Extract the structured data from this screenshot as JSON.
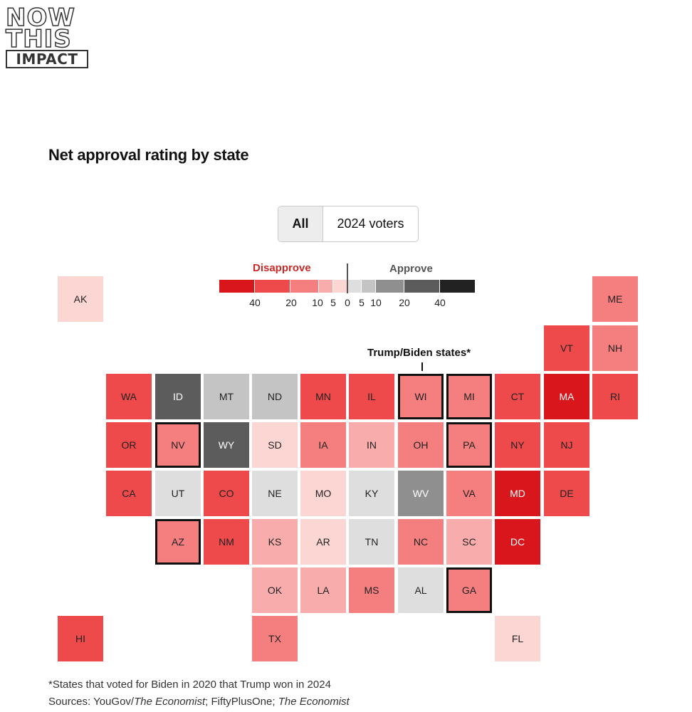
{
  "brand": {
    "line1": "NOW",
    "line2": "THIS",
    "line3": "IMPACT"
  },
  "chart_data": {
    "type": "tile-map",
    "title": "Net approval rating by state",
    "toggle": {
      "options": [
        "All",
        "2024 voters"
      ],
      "selected": "All"
    },
    "legend": {
      "left_label": "Disapprove",
      "right_label": "Approve",
      "ticks": [
        "40",
        "20",
        "10",
        "5",
        "0",
        "5",
        "10",
        "20",
        "40"
      ],
      "colors": [
        "#d8161b",
        "#ee4a4b",
        "#f57e7f",
        "#f8acab",
        "#fbd6d3",
        "#dedede",
        "#c4c4c4",
        "#8f8f8f",
        "#5c5c5c",
        "#222222"
      ]
    },
    "swing_note": "Trump/Biden states*",
    "states": [
      {
        "abbr": "AK",
        "bin": 4
      },
      {
        "abbr": "ME",
        "bin": 2
      },
      {
        "abbr": "VT",
        "bin": 1
      },
      {
        "abbr": "NH",
        "bin": 2
      },
      {
        "abbr": "WA",
        "bin": 1
      },
      {
        "abbr": "ID",
        "bin": 8
      },
      {
        "abbr": "MT",
        "bin": 6
      },
      {
        "abbr": "ND",
        "bin": 6
      },
      {
        "abbr": "MN",
        "bin": 1
      },
      {
        "abbr": "IL",
        "bin": 1
      },
      {
        "abbr": "WI",
        "bin": 2,
        "swing": true
      },
      {
        "abbr": "MI",
        "bin": 2,
        "swing": true
      },
      {
        "abbr": "CT",
        "bin": 1
      },
      {
        "abbr": "MA",
        "bin": 0
      },
      {
        "abbr": "RI",
        "bin": 1
      },
      {
        "abbr": "OR",
        "bin": 1
      },
      {
        "abbr": "NV",
        "bin": 2,
        "swing": true
      },
      {
        "abbr": "WY",
        "bin": 8
      },
      {
        "abbr": "SD",
        "bin": 4
      },
      {
        "abbr": "IA",
        "bin": 2
      },
      {
        "abbr": "IN",
        "bin": 3
      },
      {
        "abbr": "OH",
        "bin": 2
      },
      {
        "abbr": "PA",
        "bin": 2,
        "swing": true
      },
      {
        "abbr": "NY",
        "bin": 1
      },
      {
        "abbr": "NJ",
        "bin": 1
      },
      {
        "abbr": "CA",
        "bin": 1
      },
      {
        "abbr": "UT",
        "bin": 5
      },
      {
        "abbr": "CO",
        "bin": 1
      },
      {
        "abbr": "NE",
        "bin": 5
      },
      {
        "abbr": "MO",
        "bin": 4
      },
      {
        "abbr": "KY",
        "bin": 5
      },
      {
        "abbr": "WV",
        "bin": 7
      },
      {
        "abbr": "VA",
        "bin": 2
      },
      {
        "abbr": "MD",
        "bin": 0
      },
      {
        "abbr": "DE",
        "bin": 1
      },
      {
        "abbr": "AZ",
        "bin": 2,
        "swing": true
      },
      {
        "abbr": "NM",
        "bin": 1
      },
      {
        "abbr": "KS",
        "bin": 3
      },
      {
        "abbr": "AR",
        "bin": 4
      },
      {
        "abbr": "TN",
        "bin": 5
      },
      {
        "abbr": "NC",
        "bin": 2
      },
      {
        "abbr": "SC",
        "bin": 3
      },
      {
        "abbr": "DC",
        "bin": 0
      },
      {
        "abbr": "OK",
        "bin": 3
      },
      {
        "abbr": "LA",
        "bin": 3
      },
      {
        "abbr": "MS",
        "bin": 2
      },
      {
        "abbr": "AL",
        "bin": 5
      },
      {
        "abbr": "GA",
        "bin": 2,
        "swing": true
      },
      {
        "abbr": "HI",
        "bin": 1
      },
      {
        "abbr": "TX",
        "bin": 2
      },
      {
        "abbr": "FL",
        "bin": 4
      }
    ]
  },
  "footnote": "*States that voted for Biden in 2020 that Trump won in 2024",
  "sources": {
    "prefix": "Sources: YouGov/",
    "econ1": "The Economist",
    "mid": "; FiftyPlusOne; ",
    "econ2": "The Economist"
  }
}
